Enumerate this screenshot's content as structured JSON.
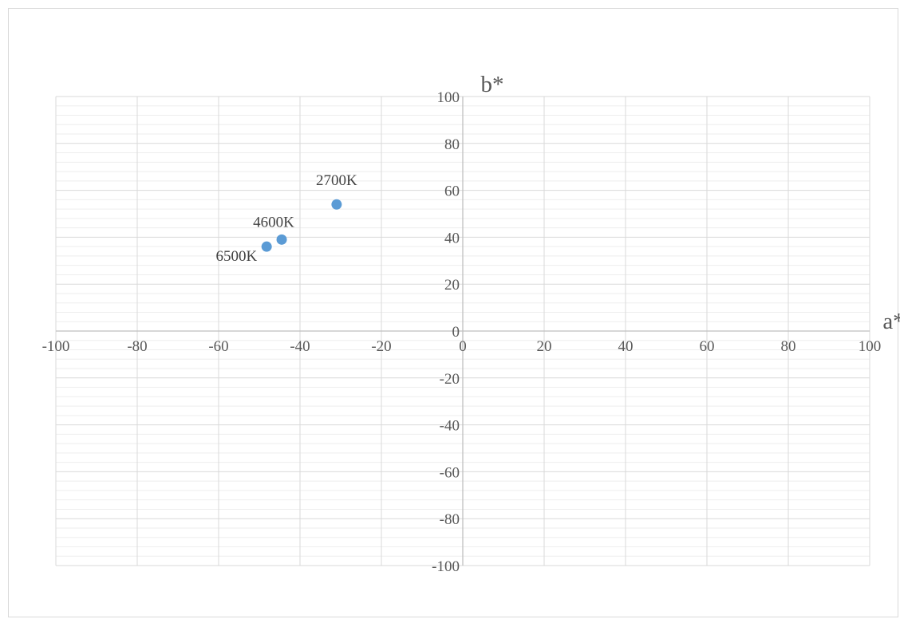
{
  "colors": {
    "marker": "#5b9bd5",
    "major_grid": "#d9d9d9",
    "minor_grid": "#eeeeee",
    "axis_line": "#bfbfbf",
    "text": "#595959"
  },
  "chart_data": {
    "type": "scatter",
    "xlabel": "a*",
    "ylabel": "b*",
    "xlim": [
      -100,
      100
    ],
    "ylim": [
      -100,
      100
    ],
    "x_major_step": 20,
    "y_major_step": 20,
    "y_minor_step": 4,
    "grid": "on",
    "legend": "none",
    "x_ticks": [
      "-100",
      "-80",
      "-60",
      "-40",
      "-20",
      "0",
      "20",
      "40",
      "60",
      "80",
      "100"
    ],
    "y_ticks": [
      "-100",
      "-80",
      "-60",
      "-40",
      "-20",
      "0",
      "20",
      "40",
      "60",
      "80",
      "100"
    ],
    "series": [
      {
        "points": [
          {
            "label": "2700K",
            "x": -31,
            "y": 54
          },
          {
            "label": "4600K",
            "x": -44.5,
            "y": 39
          },
          {
            "label": "6500K",
            "x": -48.2,
            "y": 36
          }
        ]
      }
    ]
  }
}
